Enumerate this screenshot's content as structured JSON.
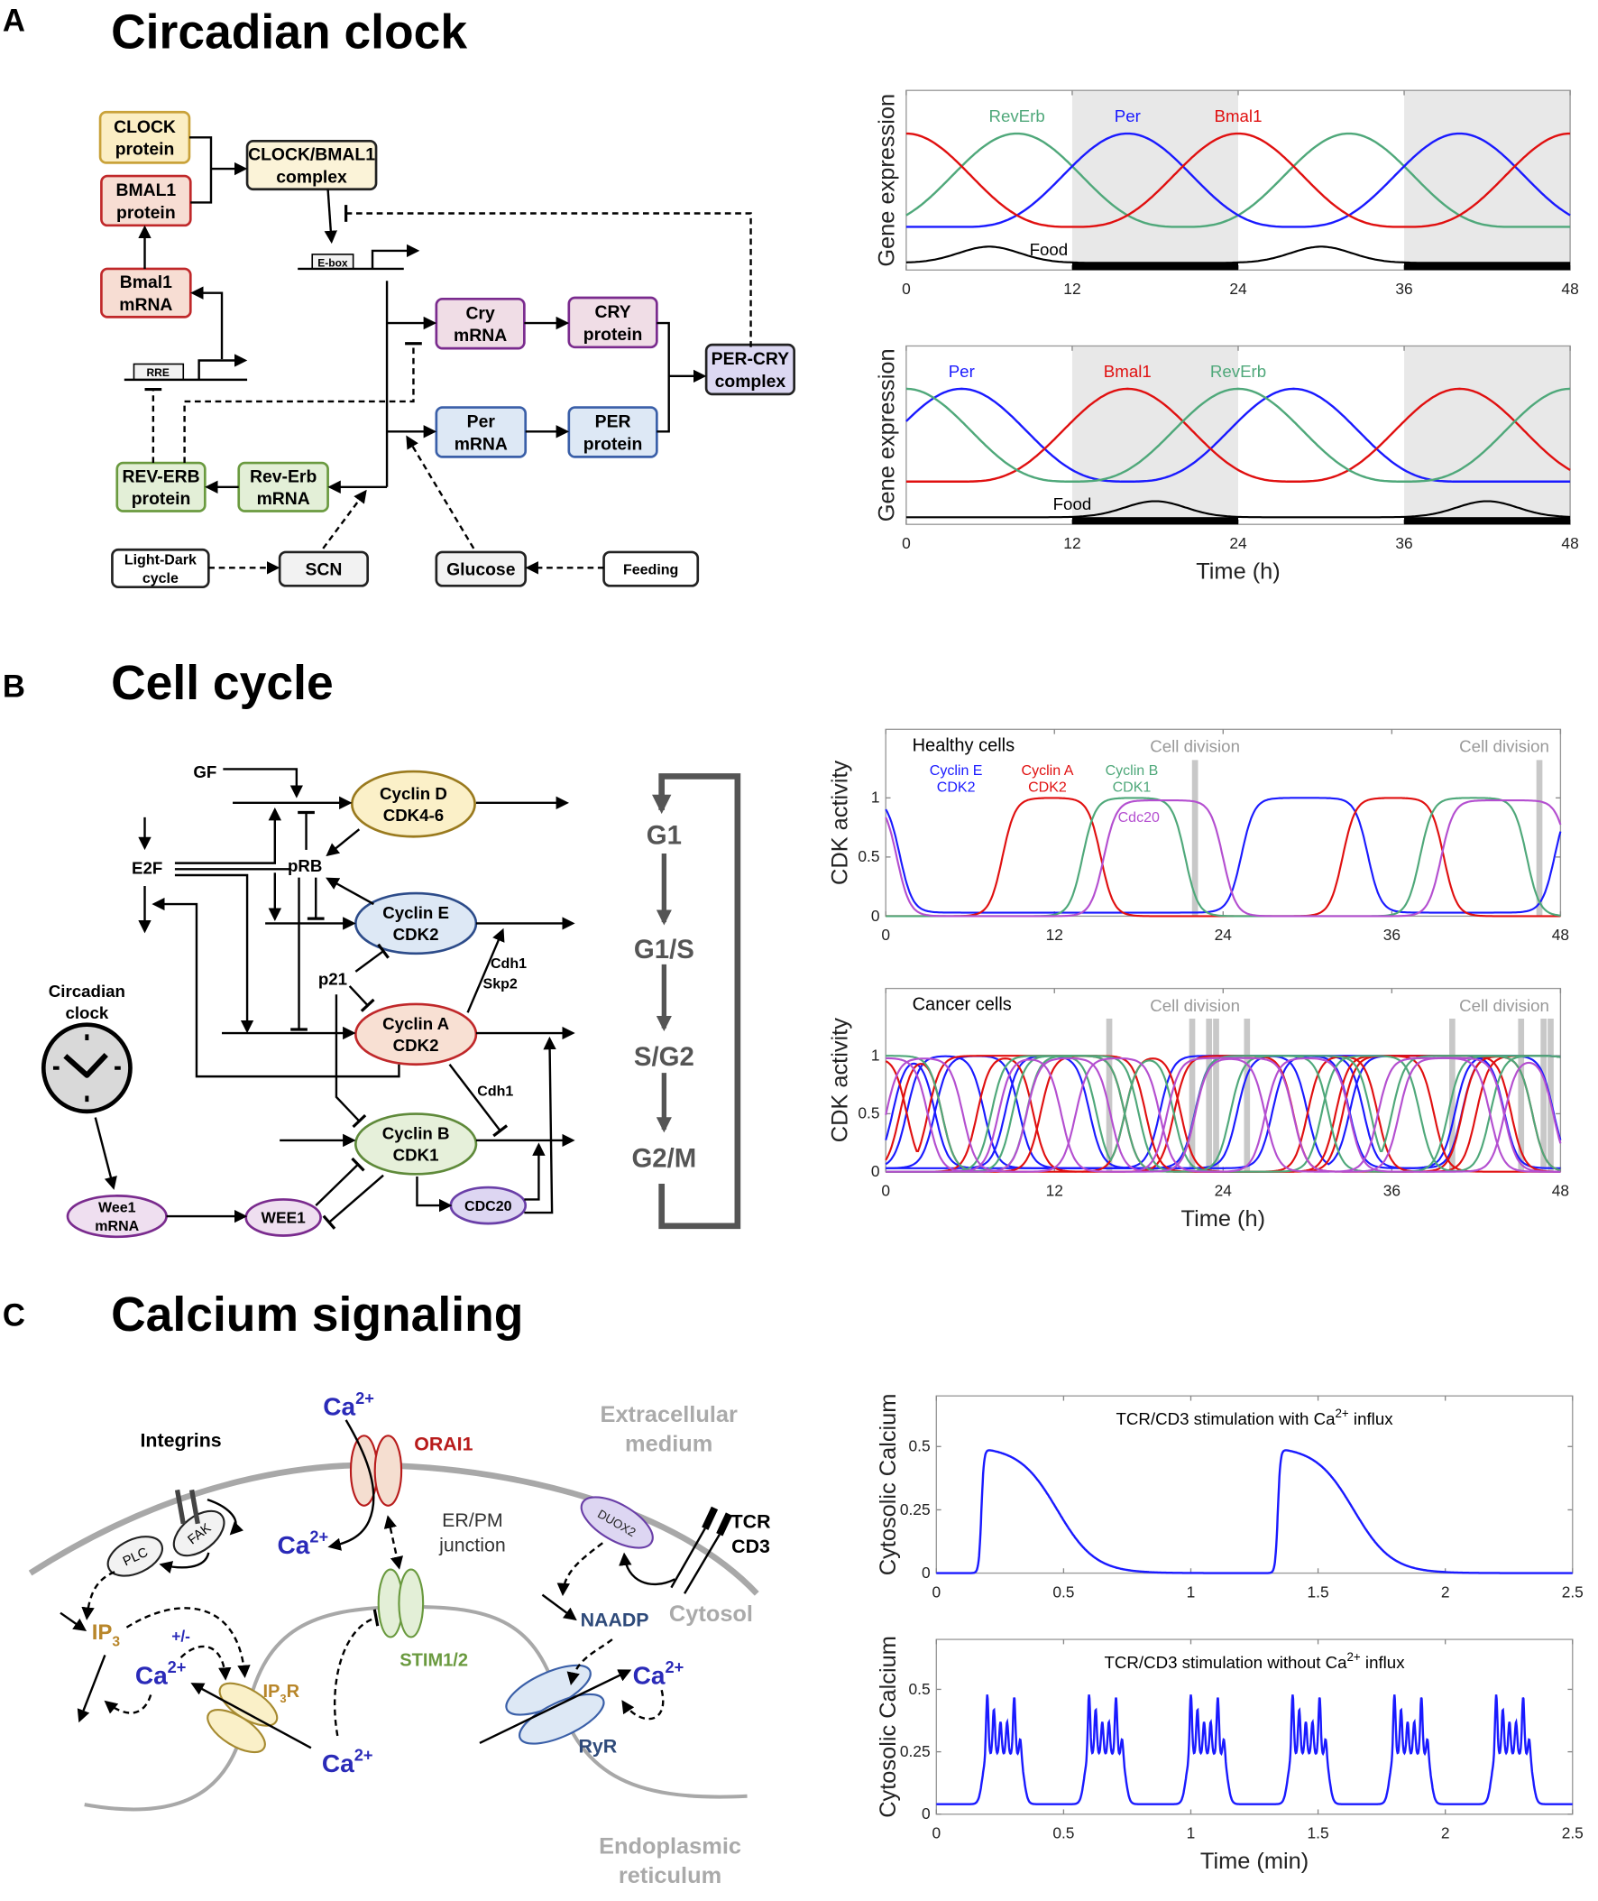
{
  "panel_a": {
    "letter": "A",
    "title": "Circadian clock",
    "nodes": {
      "clock_protein": [
        "CLOCK",
        "protein"
      ],
      "bmal1_protein": [
        "BMAL1",
        "protein"
      ],
      "clock_bmal1": [
        "CLOCK/BMAL1",
        "complex"
      ],
      "bmal1_mrna": [
        "Bmal1",
        "mRNA"
      ],
      "cry_mrna": [
        "Cry",
        "mRNA"
      ],
      "cry_protein": [
        "CRY",
        "protein"
      ],
      "per_mrna": [
        "Per",
        "mRNA"
      ],
      "per_protein": [
        "PER",
        "protein"
      ],
      "per_cry": [
        "PER-CRY",
        "complex"
      ],
      "reverb_protein": [
        "REV-ERB",
        "protein"
      ],
      "reverb_mrna": [
        "Rev-Erb",
        "mRNA"
      ],
      "light_dark": [
        "Light-Dark",
        "cycle"
      ],
      "scn": [
        "SCN"
      ],
      "glucose": [
        "Glucose"
      ],
      "feeding": [
        "Feeding"
      ]
    },
    "ebox": "E-box",
    "rre": "RRE"
  },
  "panel_b": {
    "letter": "B",
    "title": "Cell cycle",
    "nodes": {
      "cyclin_d": [
        "Cyclin D",
        "CDK4-6"
      ],
      "cyclin_e": [
        "Cyclin E",
        "CDK2"
      ],
      "cyclin_a": [
        "Cyclin A",
        "CDK2"
      ],
      "cyclin_b": [
        "Cyclin B",
        "CDK1"
      ],
      "cdc20": [
        "CDC20"
      ],
      "wee1": [
        "WEE1"
      ],
      "wee1_mrna": [
        "Wee1",
        "mRNA"
      ]
    },
    "labels": {
      "gf": "GF",
      "e2f": "E2F",
      "prb": "pRB",
      "p21": "p21",
      "cdh1_skp2": [
        "Cdh1",
        "Skp2"
      ],
      "cdh1": "Cdh1",
      "circadian_clock": [
        "Circadian",
        "clock"
      ]
    },
    "phases": [
      "G1",
      "G1/S",
      "S/G2",
      "G2/M"
    ]
  },
  "panel_c": {
    "letter": "C",
    "title": "Calcium signaling",
    "labels": {
      "integrins": "Integrins",
      "orai1": "ORAI1",
      "extracellular": [
        "Extracellular",
        "medium"
      ],
      "er_pm": [
        "ER/PM",
        "junction"
      ],
      "tcr_cd3": [
        "TCR",
        "CD3"
      ],
      "naadp": "NAADP",
      "cytosol": "Cytosol",
      "ip3": "IP",
      "ip3_sub": "3",
      "plus_minus": "+/-",
      "ip3r": "IP",
      "ip3r_sub": "3",
      "ip3r_r": "R",
      "stim": "STIM1/2",
      "ryr": "RyR",
      "plc": "PLC",
      "fak": "FAK",
      "duox2": "DUOX2",
      "er": [
        "Endoplasmic",
        "reticulum"
      ],
      "ca": "Ca",
      "ca_sup": "2+"
    }
  },
  "chart_data": [
    {
      "id": "circ1",
      "type": "line",
      "ylabel": "Gene expression",
      "xlabel": "",
      "xlim": [
        0,
        48
      ],
      "xticks": [
        "0",
        "12",
        "24",
        "36",
        "48"
      ],
      "dark_periods_h": [
        [
          12,
          24
        ],
        [
          36,
          48
        ]
      ],
      "series": [
        {
          "name": "RevErb",
          "color": "#4fa87a",
          "peak_times_h": [
            8,
            32
          ],
          "min": 0.24,
          "max": 0.76
        },
        {
          "name": "Per",
          "color": "#1a1aff",
          "peak_times_h": [
            16,
            40
          ],
          "min": 0.24,
          "max": 0.76
        },
        {
          "name": "Bmal1",
          "color": "#e01010",
          "peak_times_h": [
            0,
            24,
            48
          ],
          "min": 0.24,
          "max": 0.76
        }
      ],
      "food": {
        "name": "Food",
        "color": "#000000",
        "peak_times_h": [
          6,
          30
        ],
        "min": 0.04,
        "max": 0.13
      }
    },
    {
      "id": "circ2",
      "type": "line",
      "ylabel": "Gene expression",
      "xlabel": "Time (h)",
      "xlim": [
        0,
        48
      ],
      "xticks": [
        "0",
        "12",
        "24",
        "36",
        "48"
      ],
      "dark_periods_h": [
        [
          12,
          24
        ],
        [
          36,
          48
        ]
      ],
      "series": [
        {
          "name": "Per",
          "color": "#1a1aff",
          "peak_times_h": [
            4,
            28
          ],
          "min": 0.24,
          "max": 0.76
        },
        {
          "name": "Bmal1",
          "color": "#e01010",
          "peak_times_h": [
            16,
            40
          ],
          "min": 0.24,
          "max": 0.76
        },
        {
          "name": "RevErb",
          "color": "#4fa87a",
          "peak_times_h": [
            0,
            24,
            48
          ],
          "min": 0.24,
          "max": 0.76
        }
      ],
      "food": {
        "name": "Food",
        "color": "#000000",
        "peak_times_h": [
          18,
          42
        ],
        "min": 0.04,
        "max": 0.13
      }
    },
    {
      "id": "cc1",
      "type": "line",
      "title": "Healthy cells",
      "ylabel": "CDK activity",
      "xlabel": "",
      "xlim": [
        0,
        48
      ],
      "ylim": [
        0,
        1.58
      ],
      "xticks": [
        "0",
        "12",
        "24",
        "36",
        "48"
      ],
      "yticks": [
        "0",
        "0.5",
        "1"
      ],
      "annotation": "Cell division",
      "cell_division_h": [
        22,
        46.5
      ],
      "series": [
        {
          "name": [
            "Cyclin E",
            "CDK2"
          ],
          "color": "#1a1aff",
          "low": 0.03,
          "high": 1,
          "active_h": [
            [
              -8,
              1
            ],
            [
              25.3,
              34.3
            ],
            [
              47.6,
              60
            ]
          ]
        },
        {
          "name": [
            "Cyclin A",
            "CDK2"
          ],
          "color": "#e01010",
          "low": 0,
          "high": 1,
          "active_h": [
            [
              8.3,
              15.3
            ],
            [
              32.5,
              39.7
            ]
          ]
        },
        {
          "name": [
            "Cyclin B",
            "CDK1"
          ],
          "color": "#4fa87a",
          "low": 0,
          "high": 1,
          "active_h": [
            [
              14,
              21.3
            ],
            [
              38,
              45.6
            ]
          ]
        },
        {
          "name": [
            "Cdc20"
          ],
          "color": "#b44fd0",
          "low": 0,
          "high": 0.98,
          "active_h": [
            [
              -8,
              0.8
            ],
            [
              15.5,
              24
            ],
            [
              39.5,
              48.6
            ]
          ]
        }
      ]
    },
    {
      "id": "cc2",
      "type": "line",
      "title": "Cancer cells",
      "ylabel": "CDK activity",
      "xlabel": "Time (h)",
      "xlim": [
        0,
        48
      ],
      "ylim": [
        0,
        1.58
      ],
      "xticks": [
        "0",
        "12",
        "24",
        "36",
        "48"
      ],
      "yticks": [
        "0",
        "0.5",
        "1"
      ],
      "annotation": "Cell division",
      "cell_division_h": [
        15.9,
        21.8,
        23.0,
        23.5,
        25.7,
        40.3,
        45.2,
        46.8,
        47.3
      ],
      "series": [
        {
          "color": "#1a1aff",
          "low": 0.03,
          "high": 1,
          "active_h": [
            [
              0.5,
              3.5
            ],
            [
              19.5,
              50
            ]
          ]
        },
        {
          "color": "#1a1aff",
          "low": 0.03,
          "high": 1,
          "active_h": [
            [
              3.5,
              9.5
            ],
            [
              27.5,
              33
            ],
            [
              40.5,
              47.5
            ]
          ]
        },
        {
          "color": "#1a1aff",
          "low": 0.03,
          "high": 1,
          "active_h": [
            [
              1.5,
              7
            ],
            [
              22,
              30
            ],
            [
              33,
              44
            ]
          ]
        },
        {
          "color": "#1a1aff",
          "low": 0.03,
          "high": 1,
          "active_h": [
            [
              8.5,
              14.5
            ],
            [
              25,
              34
            ],
            [
              41,
              50
            ]
          ]
        },
        {
          "color": "#e01010",
          "low": 0,
          "high": 1,
          "active_h": [
            [
              -2,
              1.5
            ],
            [
              3,
              18.5
            ],
            [
              32.5,
              39
            ]
          ]
        },
        {
          "color": "#e01010",
          "low": 0,
          "high": 1,
          "active_h": [
            [
              6.5,
              10.5
            ],
            [
              20.5,
              29
            ],
            [
              41,
              46
            ]
          ]
        },
        {
          "color": "#e01010",
          "low": 0,
          "high": 1,
          "active_h": [
            [
              11,
              17
            ],
            [
              30,
              35
            ],
            [
              42,
              50
            ]
          ]
        },
        {
          "color": "#e01010",
          "low": 0,
          "high": 1,
          "active_h": [
            [
              1,
              4
            ],
            [
              17,
              21
            ],
            [
              32,
              44.5
            ]
          ]
        },
        {
          "color": "#4fa87a",
          "low": 0,
          "high": 1,
          "active_h": [
            [
              -5,
              4
            ],
            [
              9,
              18
            ],
            [
              22,
              34.5
            ],
            [
              36,
              50
            ]
          ]
        },
        {
          "color": "#4fa87a",
          "low": 0,
          "high": 1,
          "active_h": [
            [
              7.5,
              15
            ],
            [
              17,
              20.5
            ],
            [
              31,
              38
            ],
            [
              43,
              50
            ]
          ]
        },
        {
          "color": "#4fa87a",
          "low": 0,
          "high": 1,
          "active_h": [
            [
              10,
              17
            ],
            [
              24.5,
              31.5
            ],
            [
              40,
              46
            ]
          ]
        },
        {
          "color": "#b44fd0",
          "low": 0,
          "high": 0.98,
          "active_h": [
            [
              -5,
              3
            ],
            [
              10,
              16
            ],
            [
              20,
              29
            ],
            [
              36.5,
              44
            ]
          ]
        },
        {
          "color": "#b44fd0",
          "low": 0,
          "high": 0.98,
          "active_h": [
            [
              0,
              5.5
            ],
            [
              13.5,
              19.5
            ],
            [
              27,
              33
            ],
            [
              44,
              47.5
            ]
          ]
        },
        {
          "color": "#b44fd0",
          "low": 0,
          "high": 0.98,
          "active_h": [
            [
              8,
              12.5
            ],
            [
              22,
              27
            ],
            [
              35,
              43
            ]
          ]
        }
      ]
    },
    {
      "id": "ca1",
      "type": "line",
      "title": {
        "pre": "TCR/CD3 stimulation with Ca",
        "sup": "2+",
        "post": " influx"
      },
      "ylabel": "Cytosolic Calcium",
      "xlabel": "",
      "xlim": [
        0,
        2.5
      ],
      "ylim": [
        0,
        0.7
      ],
      "xticks": [
        "0",
        "0.5",
        "1",
        "1.5",
        "2",
        "2.5"
      ],
      "yticks": [
        "0",
        "0.25",
        "0.5"
      ],
      "series": [
        {
          "color": "#1a1aff",
          "pulse_onsets_min": [
            0.165,
            1.33
          ],
          "peak": 0.5,
          "baseline": 0
        }
      ]
    },
    {
      "id": "ca2",
      "type": "line",
      "title": {
        "pre": "TCR/CD3 stimulation without Ca",
        "sup": "2+",
        "post": " influx"
      },
      "ylabel": "Cytosolic Calcium",
      "xlabel": "Time (min)",
      "xlim": [
        0,
        2.5
      ],
      "ylim": [
        0,
        0.7
      ],
      "xticks": [
        "0",
        "0.5",
        "1",
        "1.5",
        "2",
        "2.5"
      ],
      "yticks": [
        "0",
        "0.25",
        "0.5"
      ],
      "series": [
        {
          "color": "#1a1aff",
          "burst_onsets_min": [
            0.18,
            0.58,
            0.98,
            1.38,
            1.78,
            2.18
          ],
          "baseline": 0.04,
          "spike_peaks": [
            0.49,
            0.42,
            0.37,
            0.37,
            0.47,
            0.32
          ]
        }
      ]
    }
  ]
}
